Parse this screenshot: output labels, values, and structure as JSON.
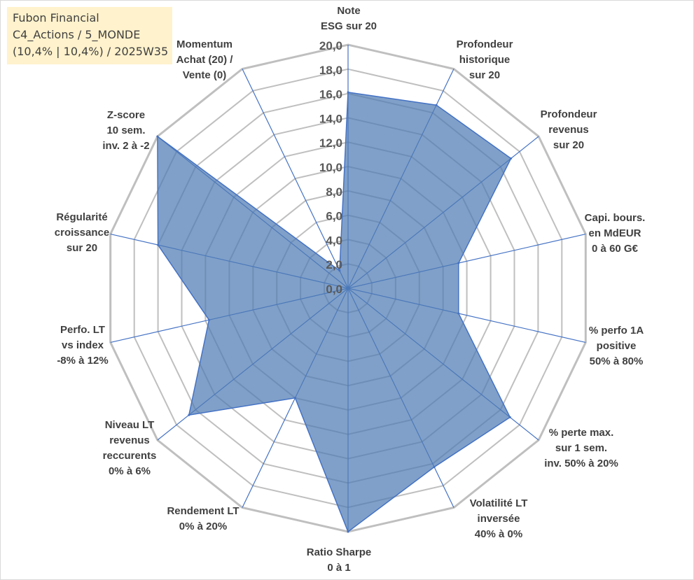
{
  "title_box": {
    "lines": [
      "Fubon Financial",
      "C4_Actions / 5_MONDE",
      "(10,4% | 10,4%) / 2025W35"
    ]
  },
  "colors": {
    "fill": "#4f7cb4",
    "stroke": "#4472c4",
    "grid": "#bfbfbf",
    "spoke": "#4472c4",
    "title_bg": "#fff2cc"
  },
  "chart_data": {
    "type": "radar",
    "title": "",
    "rmin": 0,
    "rmax": 20,
    "tick_step": 2,
    "ticks": [
      "0,0",
      "2,0",
      "4,0",
      "6,0",
      "8,0",
      "10,0",
      "12,0",
      "14,0",
      "16,0",
      "18,0",
      "20,0"
    ],
    "grid": true,
    "legend": "none",
    "axes": [
      {
        "label": [
          "Note",
          "ESG sur 20"
        ],
        "value": 16.1
      },
      {
        "label": [
          "Profondeur",
          "historique",
          "sur 20"
        ],
        "value": 16.7
      },
      {
        "label": [
          "Profondeur",
          "revenus",
          "sur 20"
        ],
        "value": 17.1
      },
      {
        "label": [
          "Capi. bours.",
          "en MdEUR",
          "0 à 60 G€"
        ],
        "value": 9.3
      },
      {
        "label": [
          "% perfo 1A",
          "positive",
          "50% à 80%"
        ],
        "value": 9.3
      },
      {
        "label": [
          "% perte max.",
          "sur 1 sem.",
          "inv. 50% à 20%"
        ],
        "value": 17.0
      },
      {
        "label": [
          "Volatilité LT",
          "inversée",
          "40% à 0%"
        ],
        "value": 16.3
      },
      {
        "label": [
          "Ratio Sharpe",
          "0 à 1"
        ],
        "value": 20.0
      },
      {
        "label": [
          "Rendement LT",
          "0% à 20%"
        ],
        "value": 10.0
      },
      {
        "label": [
          "Niveau LT",
          "revenus",
          "reccurents",
          "0% à 6%"
        ],
        "value": 16.7
      },
      {
        "label": [
          "Perfo. LT",
          "vs index",
          "-8% à 12%"
        ],
        "value": 11.7
      },
      {
        "label": [
          "Régularité",
          "croissance",
          "sur 20"
        ],
        "value": 16.0
      },
      {
        "label": [
          "Z-score",
          "10 sem.",
          "inv. 2 à -2"
        ],
        "value": 20.0
      },
      {
        "label": [
          "Momentum",
          "Achat (20) /",
          "Vente (0)"
        ],
        "value": 1.6
      }
    ]
  }
}
